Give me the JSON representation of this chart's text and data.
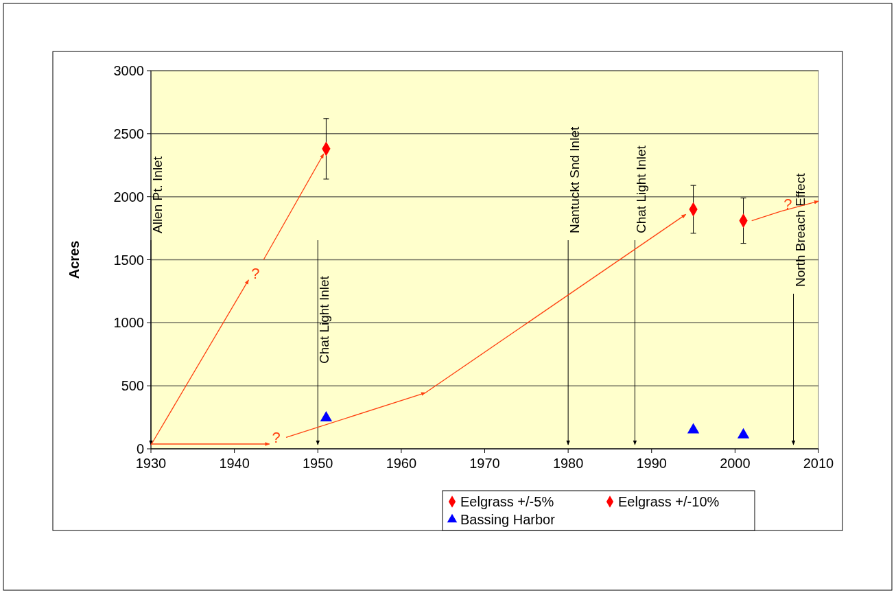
{
  "chart_data": {
    "type": "scatter",
    "ylabel": "Acres",
    "xlim": [
      1930,
      2010
    ],
    "ylim": [
      0,
      3000
    ],
    "xticks": [
      1930,
      1940,
      1950,
      1960,
      1970,
      1980,
      1990,
      2000,
      2010
    ],
    "yticks": [
      0,
      500,
      1000,
      1500,
      2000,
      2500,
      3000
    ],
    "grid": "y",
    "legend": "bottom",
    "series": [
      {
        "name": "Eelgrass +/-5%",
        "color": "#ff0000",
        "marker": "diamond"
      },
      {
        "name": "Eelgrass +/-10%",
        "color": "#ff0000",
        "marker": "diamond",
        "x": [
          1951,
          1995,
          2001
        ],
        "values": [
          2380,
          1900,
          1810
        ],
        "errors": [
          240,
          190,
          180
        ]
      },
      {
        "name": "Bassing Harbor",
        "color": "#0000ff",
        "marker": "triangle",
        "x": [
          1951,
          1995,
          2001
        ],
        "values": [
          245,
          150,
          110
        ]
      },
      {
        "type": "line",
        "color": "#ff4010",
        "x": [
          1930,
          1941.7
        ],
        "values": [
          30,
          1340
        ]
      },
      {
        "type": "line",
        "color": "#ff4010",
        "x": [
          1943.5,
          1950.7
        ],
        "values": [
          1500,
          2340
        ]
      },
      {
        "type": "line",
        "color": "#ff4010",
        "x": [
          1930,
          1944.2
        ],
        "values": [
          38,
          38
        ]
      },
      {
        "type": "line",
        "color": "#ff4010",
        "x": [
          1946.2,
          1962.9
        ],
        "values": [
          90,
          445
        ]
      },
      {
        "type": "line",
        "color": "#ff4010",
        "x": [
          1962.9,
          1994.1
        ],
        "values": [
          445,
          1860
        ]
      },
      {
        "type": "line",
        "color": "#ff4010",
        "x": [
          2002,
          2005.5,
          2010
        ],
        "values": [
          1810,
          1885,
          1965
        ]
      }
    ],
    "ref_lines": [
      {
        "axis": "x",
        "value": 1930,
        "label": "Allen Pt. Inlet"
      },
      {
        "axis": "x",
        "value": 1950,
        "label": "Chat Light Inlet"
      },
      {
        "axis": "x",
        "value": 1980,
        "label": "Nantuckt Snd Inlet"
      },
      {
        "axis": "x",
        "value": 1988,
        "label": "Chat Light Inlet"
      },
      {
        "axis": "x",
        "value": 2007,
        "label": "North Breach Effect"
      }
    ],
    "annotations": [
      {
        "text": "?",
        "x": 1941.7,
        "y": 1340
      },
      {
        "text": "?",
        "x": 1944.2,
        "y": 38
      },
      {
        "text": "?",
        "x": 2005.5,
        "y": 1885
      }
    ]
  }
}
